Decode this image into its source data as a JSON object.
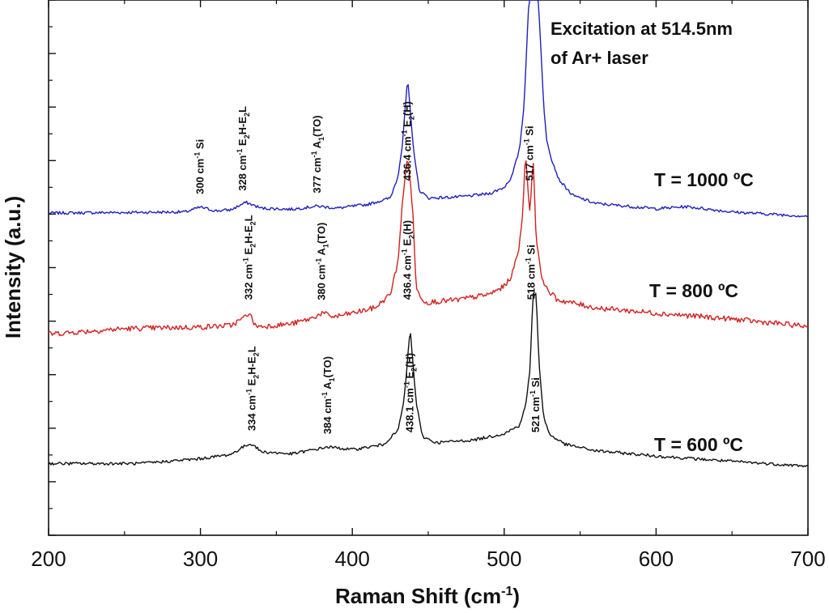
{
  "chart_data": {
    "type": "line",
    "title": "",
    "xlabel": "Raman Shift (cm",
    "xlabel_sup": "-1",
    "xlabel_close": ")",
    "ylabel": "Intensity (a.u.)",
    "xlim": [
      200,
      700
    ],
    "ylim": [
      0,
      100
    ],
    "x_ticks": [
      200,
      300,
      400,
      500,
      600,
      700
    ],
    "annotation": [
      "Excitation at 514.5nm",
      "of Ar+ laser"
    ],
    "colors": {
      "series_1000": "#1f1fbf",
      "series_800": "#d42020",
      "series_600": "#111111",
      "axis": "#111111"
    },
    "series": [
      {
        "name": "T = 1000 ºC",
        "color": "#1f1fbf",
        "baseline": 60.2,
        "points": [
          [
            200,
            60.2
          ],
          [
            290,
            60.4
          ],
          [
            300,
            61.3
          ],
          [
            310,
            60.6
          ],
          [
            320,
            60.8
          ],
          [
            330,
            62.2
          ],
          [
            340,
            61.1
          ],
          [
            360,
            60.9
          ],
          [
            377,
            61.5
          ],
          [
            390,
            61.1
          ],
          [
            410,
            61.8
          ],
          [
            425,
            63.0
          ],
          [
            430,
            67.0
          ],
          [
            433,
            73.0
          ],
          [
            436.4,
            85.3
          ],
          [
            440,
            73.0
          ],
          [
            444,
            64.5
          ],
          [
            450,
            63.0
          ],
          [
            470,
            63.2
          ],
          [
            490,
            63.8
          ],
          [
            500,
            65.0
          ],
          [
            505,
            67.0
          ],
          [
            510,
            72.0
          ],
          [
            513,
            80.0
          ],
          [
            516,
            98.5
          ],
          [
            517,
            102.0
          ],
          [
            522,
            102.0
          ],
          [
            524,
            92.0
          ],
          [
            526,
            80.0
          ],
          [
            528,
            74.0
          ],
          [
            531,
            70.5
          ],
          [
            536,
            66.5
          ],
          [
            545,
            63.5
          ],
          [
            560,
            62.0
          ],
          [
            600,
            61.0
          ],
          [
            620,
            61.4
          ],
          [
            650,
            60.4
          ],
          [
            700,
            59.6
          ]
        ],
        "peaks": [
          {
            "x": 300,
            "label": "300 cm",
            "sup": "-1",
            "tail": " Si"
          },
          {
            "x": 328,
            "label": "328 cm",
            "sup": "-1",
            "tail": " E",
            "sub1": "2",
            "tail2": "H-E",
            "sub2": "2",
            "tail3": "L"
          },
          {
            "x": 377,
            "label": "377 cm",
            "sup": "-1",
            "tail": " A",
            "sub1": "1",
            "tail2": "(TO)"
          },
          {
            "x": 436.4,
            "label": "436.4 cm",
            "sup": "-1",
            "tail": " E",
            "sub1": "2",
            "tail2": "(H)"
          },
          {
            "x": 517,
            "label": "517 cm",
            "sup": "-1",
            "tail": " Si"
          }
        ]
      },
      {
        "name": "T = 800 ºC",
        "color": "#d42020",
        "baseline": 38.0,
        "points": [
          [
            200,
            37.6
          ],
          [
            250,
            38.6
          ],
          [
            300,
            38.9
          ],
          [
            320,
            39.2
          ],
          [
            328,
            40.5
          ],
          [
            332,
            41.6
          ],
          [
            336,
            39.2
          ],
          [
            340,
            39.0
          ],
          [
            360,
            39.5
          ],
          [
            372,
            40.4
          ],
          [
            380,
            41.5
          ],
          [
            388,
            40.8
          ],
          [
            400,
            41.5
          ],
          [
            415,
            42.5
          ],
          [
            425,
            45.0
          ],
          [
            430,
            51.0
          ],
          [
            433,
            62.0
          ],
          [
            436.4,
            71.3
          ],
          [
            440,
            60.0
          ],
          [
            442,
            46.0
          ],
          [
            448,
            43.5
          ],
          [
            470,
            44.0
          ],
          [
            490,
            45.0
          ],
          [
            500,
            46.5
          ],
          [
            505,
            48.5
          ],
          [
            510,
            54.0
          ],
          [
            512,
            60.0
          ],
          [
            514,
            71.0
          ],
          [
            517,
            60.0
          ],
          [
            519,
            71.0
          ],
          [
            521,
            56.0
          ],
          [
            524,
            49.0
          ],
          [
            528,
            46.0
          ],
          [
            535,
            44.0
          ],
          [
            560,
            42.5
          ],
          [
            600,
            41.5
          ],
          [
            650,
            40.4
          ],
          [
            700,
            39.0
          ]
        ],
        "peaks": [
          {
            "x": 332,
            "label": "332 cm",
            "sup": "-1",
            "tail": " E",
            "sub1": "2",
            "tail2": "H-E",
            "sub2": "2",
            "tail3": "L"
          },
          {
            "x": 380,
            "label": "380 cm",
            "sup": "-1",
            "tail": " A",
            "sub1": "1",
            "tail2": "(TO)"
          },
          {
            "x": 436.4,
            "label": "436.4 cm",
            "sup": "-1",
            "tail": " E",
            "sub1": "2",
            "tail2": "(H)"
          },
          {
            "x": 518,
            "label": "518 cm",
            "sup": "-1",
            "tail": " Si"
          }
        ]
      },
      {
        "name": "T = 600 ºC",
        "color": "#111111",
        "baseline": 13.2,
        "points": [
          [
            200,
            13.4
          ],
          [
            260,
            13.4
          ],
          [
            300,
            14.3
          ],
          [
            320,
            15.1
          ],
          [
            330,
            16.8
          ],
          [
            334,
            17.1
          ],
          [
            340,
            15.6
          ],
          [
            360,
            15.2
          ],
          [
            384,
            16.5
          ],
          [
            400,
            16.0
          ],
          [
            420,
            16.9
          ],
          [
            430,
            19.5
          ],
          [
            434,
            25.0
          ],
          [
            438.1,
            38.5
          ],
          [
            442,
            25.0
          ],
          [
            446,
            18.5
          ],
          [
            455,
            17.3
          ],
          [
            480,
            17.8
          ],
          [
            500,
            19.0
          ],
          [
            510,
            20.5
          ],
          [
            514,
            24.0
          ],
          [
            517,
            31.0
          ],
          [
            519,
            45.0
          ],
          [
            521,
            45.0
          ],
          [
            523,
            32.0
          ],
          [
            526,
            22.0
          ],
          [
            530,
            18.8
          ],
          [
            540,
            17.0
          ],
          [
            560,
            15.8
          ],
          [
            600,
            14.8
          ],
          [
            650,
            13.8
          ],
          [
            700,
            12.9
          ]
        ],
        "peaks": [
          {
            "x": 334,
            "label": "334 cm",
            "sup": "-1",
            "tail": " E",
            "sub1": "2",
            "tail2": "H-E",
            "sub2": "2",
            "tail3": "L"
          },
          {
            "x": 384,
            "label": "384 cm",
            "sup": "-1",
            "tail": " A",
            "sub1": "1",
            "tail2": "(TO)"
          },
          {
            "x": 438.1,
            "label": "438.1 cm",
            "sup": "-1",
            "tail": " E",
            "sub1": "2",
            "tail2": "(H)"
          },
          {
            "x": 521,
            "label": "521 cm",
            "sup": "-1",
            "tail": " Si"
          }
        ]
      }
    ]
  }
}
